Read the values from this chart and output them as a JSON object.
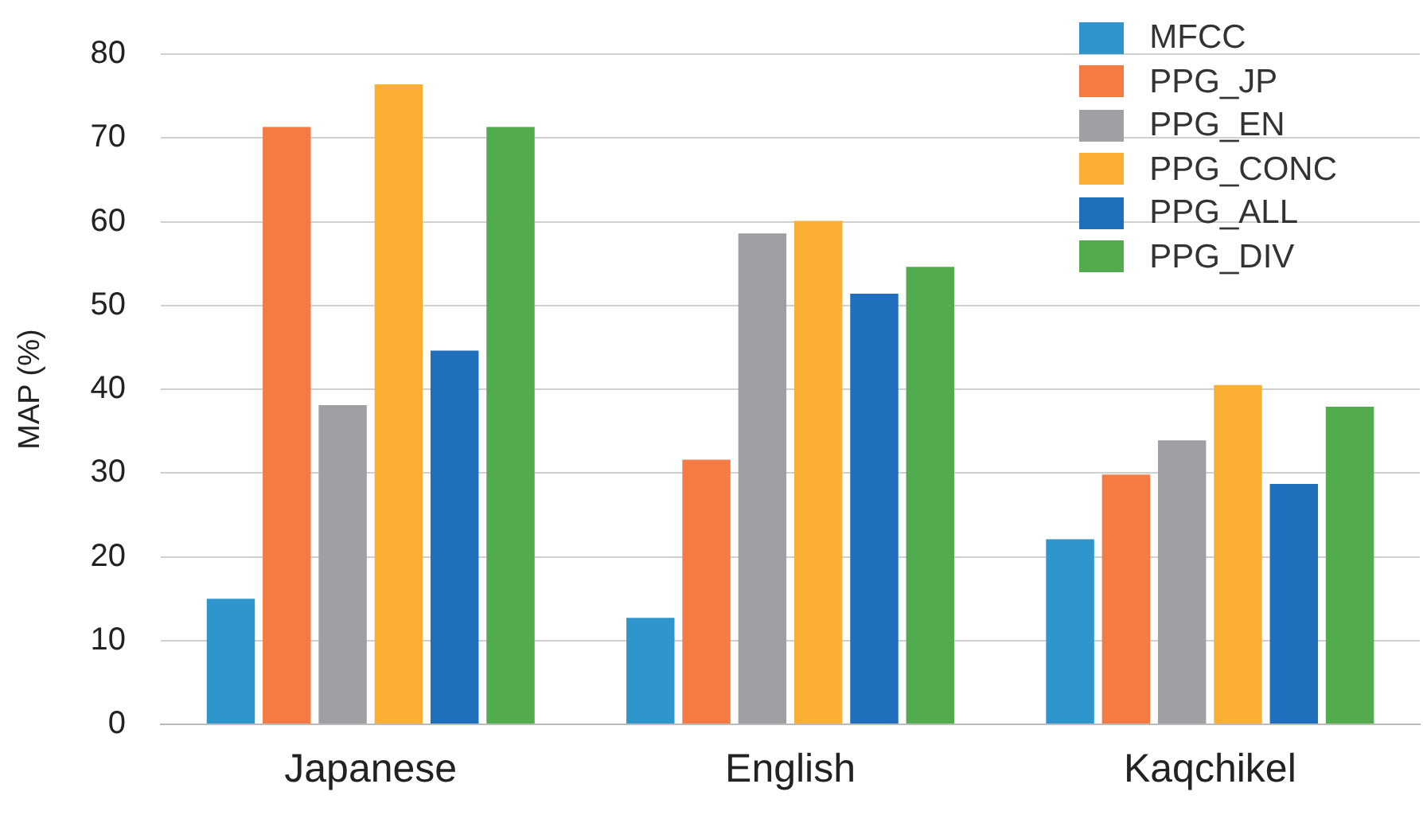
{
  "chart_data": {
    "type": "bar",
    "ylabel": "MAP (%)",
    "categories": [
      "Japanese",
      "English",
      "Kaqchikel"
    ],
    "series": [
      {
        "name": "MFCC",
        "color": "#2e96cc",
        "values": [
          15.0,
          12.7,
          22.1
        ]
      },
      {
        "name": "PPG_JP",
        "color": "#f47c44",
        "values": [
          71.3,
          31.6,
          29.8
        ]
      },
      {
        "name": "PPG_EN",
        "color": "#a0a0a4",
        "values": [
          38.1,
          58.6,
          33.9
        ]
      },
      {
        "name": "PPG_CONC",
        "color": "#fbb034",
        "values": [
          76.4,
          60.1,
          40.5
        ]
      },
      {
        "name": "PPG_ALL",
        "color": "#1f6fbd",
        "values": [
          44.6,
          51.4,
          28.7
        ]
      },
      {
        "name": "PPG_DIV",
        "color": "#52ab4c",
        "values": [
          71.3,
          54.6,
          37.9
        ]
      }
    ],
    "ylim": [
      0,
      80
    ],
    "yticks": [
      0,
      10,
      20,
      30,
      40,
      50,
      60,
      70,
      80
    ],
    "grid": "y",
    "legend": "top right"
  }
}
